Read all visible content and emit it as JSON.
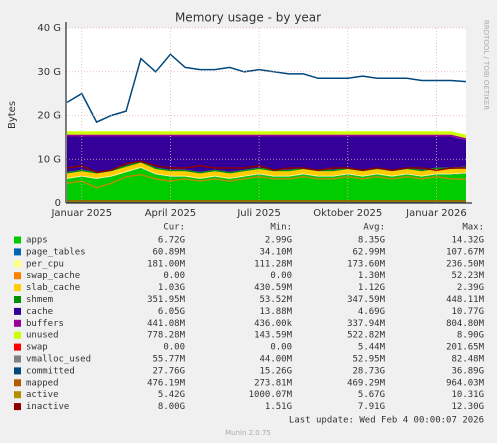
{
  "chart_data": {
    "type": "stacked_area",
    "title": "Memory usage - by year",
    "y_label": "Bytes",
    "side_text": "RRDTOOL / TOBI OETIKER",
    "legend_headers": [
      "Cur:",
      "Min:",
      "Avg:",
      "Max:"
    ],
    "last_update": "Last update: Wed Feb  4 00:00:07 2026",
    "footer": "Munin 2.0.75",
    "grid": true,
    "ylim": [
      0,
      40000000000
    ],
    "yticks": [
      0,
      {
        "value": 10000000000,
        "label": "10 G"
      },
      {
        "value": 20000000000,
        "label": "20 G"
      },
      {
        "value": 30000000000,
        "label": "30 G"
      },
      {
        "value": 40000000000,
        "label": "40 G"
      }
    ],
    "categories": [
      null,
      "Januar 2025",
      null,
      null,
      null,
      null,
      null,
      "April 2025",
      null,
      null,
      null,
      null,
      null,
      "Juli 2025",
      null,
      null,
      null,
      null,
      null,
      "Oktober 2025",
      null,
      null,
      null,
      null,
      null,
      "Januar 2026",
      null,
      null
    ],
    "series": [
      {
        "name": "apps",
        "color": "#00cc00",
        "stack": true,
        "cur": "6.72G",
        "min": "2.99G",
        "avg": "8.35G",
        "max": "14.32G",
        "values": [
          5500000000.0,
          6000000000.0,
          5500000000.0,
          6000000000.0,
          7000000000.0,
          8000000000.0,
          6500000000.0,
          6000000000.0,
          6000000000.0,
          5500000000.0,
          6000000000.0,
          5500000000.0,
          6000000000.0,
          6500000000.0,
          6000000000.0,
          6000000000.0,
          6500000000.0,
          6000000000.0,
          6000000000.0,
          6500000000.0,
          6000000000.0,
          6500000000.0,
          6000000000.0,
          6500000000.0,
          6000000000.0,
          6500000000.0,
          6500000000.0,
          6720000000.0
        ]
      },
      {
        "name": "page_tables",
        "color": "#0066b3",
        "stack": true,
        "cur": "60.89M",
        "min": "34.10M",
        "avg": "62.99M",
        "max": "107.67M",
        "values": [
          60000000.0,
          60000000.0,
          60000000.0,
          60000000.0,
          60000000.0,
          60000000.0,
          60000000.0,
          60000000.0,
          60000000.0,
          60000000.0,
          60000000.0,
          60000000.0,
          60000000.0,
          60000000.0,
          60000000.0,
          60000000.0,
          60000000.0,
          60000000.0,
          60000000.0,
          60000000.0,
          60000000.0,
          60000000.0,
          60000000.0,
          60000000.0,
          60000000.0,
          60000000.0,
          60000000.0,
          60000000.0
        ]
      },
      {
        "name": "per_cpu",
        "color": "#ffff80",
        "stack": true,
        "cur": "181.00M",
        "min": "111.28M",
        "avg": "173.60M",
        "max": "236.50M",
        "values": [
          180000000.0,
          180000000.0,
          180000000.0,
          180000000.0,
          180000000.0,
          180000000.0,
          180000000.0,
          180000000.0,
          180000000.0,
          180000000.0,
          180000000.0,
          180000000.0,
          180000000.0,
          180000000.0,
          180000000.0,
          180000000.0,
          180000000.0,
          180000000.0,
          180000000.0,
          180000000.0,
          180000000.0,
          180000000.0,
          180000000.0,
          180000000.0,
          180000000.0,
          180000000.0,
          180000000.0,
          180000000.0
        ]
      },
      {
        "name": "swap_cache",
        "color": "#ff8000",
        "stack": true,
        "cur": "0.00",
        "min": "0.00",
        "avg": "1.30M",
        "max": "52.23M",
        "values": [
          0,
          0,
          0,
          0,
          0,
          0,
          0,
          0,
          0,
          0,
          0,
          0,
          0,
          0,
          0,
          0,
          0,
          0,
          0,
          0,
          0,
          0,
          0,
          0,
          0,
          0,
          0,
          0
        ]
      },
      {
        "name": "slab_cache",
        "color": "#ffcc00",
        "stack": true,
        "cur": "1.03G",
        "min": "430.59M",
        "avg": "1.12G",
        "max": "2.39G",
        "values": [
          1000000000.0,
          1000000000.0,
          1000000000.0,
          1000000000.0,
          1000000000.0,
          1000000000.0,
          1000000000.0,
          1000000000.0,
          1000000000.0,
          1000000000.0,
          1000000000.0,
          1000000000.0,
          1000000000.0,
          1000000000.0,
          1000000000.0,
          1000000000.0,
          1000000000.0,
          1000000000.0,
          1000000000.0,
          1000000000.0,
          1000000000.0,
          1000000000.0,
          1000000000.0,
          1000000000.0,
          1000000000.0,
          1000000000.0,
          1000000000.0,
          1030000000.0
        ]
      },
      {
        "name": "shmem",
        "color": "#008f00",
        "stack": true,
        "cur": "351.95M",
        "min": "53.52M",
        "avg": "347.59M",
        "max": "448.11M",
        "values": [
          350000000.0,
          350000000.0,
          350000000.0,
          350000000.0,
          350000000.0,
          350000000.0,
          350000000.0,
          350000000.0,
          350000000.0,
          350000000.0,
          350000000.0,
          350000000.0,
          350000000.0,
          350000000.0,
          350000000.0,
          350000000.0,
          350000000.0,
          350000000.0,
          350000000.0,
          350000000.0,
          350000000.0,
          350000000.0,
          350000000.0,
          350000000.0,
          350000000.0,
          350000000.0,
          350000000.0,
          350000000.0
        ]
      },
      {
        "name": "cache",
        "color": "#330099",
        "stack": true,
        "cur": "6.05G",
        "min": "13.88M",
        "avg": "4.69G",
        "max": "10.77G",
        "values": [
          8100000000.0,
          7600000000.0,
          8100000000.0,
          7600000000.0,
          6600000000.0,
          5600000000.0,
          7100000000.0,
          7600000000.0,
          7600000000.0,
          8100000000.0,
          7600000000.0,
          8100000000.0,
          7600000000.0,
          7100000000.0,
          7600000000.0,
          7600000000.0,
          7100000000.0,
          7600000000.0,
          7600000000.0,
          7100000000.0,
          7600000000.0,
          7100000000.0,
          7600000000.0,
          7100000000.0,
          7600000000.0,
          7100000000.0,
          7100000000.0,
          6050000000.0
        ]
      },
      {
        "name": "buffers",
        "color": "#990099",
        "stack": true,
        "cur": "441.08M",
        "min": "436.00k",
        "avg": "337.94M",
        "max": "804.80M",
        "values": [
          440000000.0,
          440000000.0,
          440000000.0,
          440000000.0,
          440000000.0,
          440000000.0,
          440000000.0,
          440000000.0,
          440000000.0,
          440000000.0,
          440000000.0,
          440000000.0,
          440000000.0,
          440000000.0,
          440000000.0,
          440000000.0,
          440000000.0,
          440000000.0,
          440000000.0,
          440000000.0,
          440000000.0,
          440000000.0,
          440000000.0,
          440000000.0,
          440000000.0,
          440000000.0,
          440000000.0,
          441000000.0
        ]
      },
      {
        "name": "unused",
        "color": "#ccff00",
        "stack": true,
        "cur": "778.28M",
        "min": "143.59M",
        "avg": "522.82M",
        "max": "8.90G",
        "values": [
          780000000.0,
          780000000.0,
          780000000.0,
          780000000.0,
          780000000.0,
          780000000.0,
          780000000.0,
          780000000.0,
          780000000.0,
          780000000.0,
          780000000.0,
          780000000.0,
          780000000.0,
          780000000.0,
          780000000.0,
          780000000.0,
          780000000.0,
          780000000.0,
          780000000.0,
          780000000.0,
          780000000.0,
          780000000.0,
          780000000.0,
          780000000.0,
          780000000.0,
          780000000.0,
          780000000.0,
          780000000.0
        ]
      },
      {
        "name": "swap",
        "color": "#ff0000",
        "stack": true,
        "cur": "0.00",
        "min": "0.00",
        "avg": "5.44M",
        "max": "201.65M",
        "values": [
          0,
          0,
          0,
          0,
          0,
          0,
          0,
          0,
          0,
          0,
          0,
          0,
          0,
          0,
          0,
          0,
          0,
          0,
          0,
          0,
          0,
          0,
          0,
          0,
          0,
          0,
          0,
          0
        ]
      },
      {
        "name": "vmalloc_used",
        "color": "#808080",
        "stack": false,
        "cur": "55.77M",
        "min": "44.00M",
        "avg": "52.95M",
        "max": "82.48M",
        "values": [
          55000000.0,
          55000000.0,
          55000000.0,
          55000000.0,
          55000000.0,
          55000000.0,
          55000000.0,
          55000000.0,
          55000000.0,
          55000000.0,
          55000000.0,
          55000000.0,
          55000000.0,
          55000000.0,
          55000000.0,
          55000000.0,
          55000000.0,
          55000000.0,
          55000000.0,
          55000000.0,
          55000000.0,
          55000000.0,
          55000000.0,
          55000000.0,
          55000000.0,
          55000000.0,
          55000000.0,
          55000000.0
        ]
      },
      {
        "name": "committed",
        "color": "#00487d",
        "stack": false,
        "cur": "27.76G",
        "min": "15.26G",
        "avg": "28.73G",
        "max": "36.89G",
        "values": [
          23000000000.0,
          25000000000.0,
          18500000000.0,
          20000000000.0,
          21000000000.0,
          33000000000.0,
          30000000000.0,
          34000000000.0,
          31000000000.0,
          30500000000.0,
          30500000000.0,
          31000000000.0,
          30000000000.0,
          30500000000.0,
          30000000000.0,
          29500000000.0,
          29500000000.0,
          28500000000.0,
          28500000000.0,
          28500000000.0,
          29000000000.0,
          28500000000.0,
          28500000000.0,
          28500000000.0,
          28000000000.0,
          28000000000.0,
          28000000000.0,
          27760000000.0
        ]
      },
      {
        "name": "mapped",
        "color": "#b35a00",
        "stack": false,
        "cur": "476.19M",
        "min": "273.81M",
        "avg": "469.29M",
        "max": "964.03M",
        "values": [
          480000000.0,
          480000000.0,
          480000000.0,
          480000000.0,
          480000000.0,
          480000000.0,
          480000000.0,
          480000000.0,
          480000000.0,
          480000000.0,
          480000000.0,
          480000000.0,
          480000000.0,
          480000000.0,
          480000000.0,
          480000000.0,
          480000000.0,
          480000000.0,
          480000000.0,
          480000000.0,
          480000000.0,
          480000000.0,
          480000000.0,
          480000000.0,
          480000000.0,
          480000000.0,
          480000000.0,
          476000000.0
        ]
      },
      {
        "name": "active",
        "color": "#b38f00",
        "stack": false,
        "cur": "5.42G",
        "min": "1000.07M",
        "avg": "5.67G",
        "max": "10.31G",
        "values": [
          4500000000.0,
          5000000000.0,
          3500000000.0,
          4500000000.0,
          6000000000.0,
          6500000000.0,
          5500000000.0,
          5000000000.0,
          5500000000.0,
          5000000000.0,
          5500000000.0,
          5000000000.0,
          5500000000.0,
          6000000000.0,
          5500000000.0,
          5500000000.0,
          6000000000.0,
          5500000000.0,
          5500000000.0,
          6000000000.0,
          5500000000.0,
          6000000000.0,
          5500000000.0,
          6000000000.0,
          5500000000.0,
          6000000000.0,
          5500000000.0,
          5420000000.0
        ]
      },
      {
        "name": "inactive",
        "color": "#8f0000",
        "stack": false,
        "cur": "8.00G",
        "min": "1.51G",
        "avg": "7.91G",
        "max": "12.30G",
        "values": [
          8000000000.0,
          8500000000.0,
          7000000000.0,
          7500000000.0,
          9000000000.0,
          9500000000.0,
          8500000000.0,
          8000000000.0,
          8000000000.0,
          8500000000.0,
          8000000000.0,
          8000000000.0,
          8000000000.0,
          8500000000.0,
          7500000000.0,
          8000000000.0,
          8000000000.0,
          7500000000.0,
          8000000000.0,
          8000000000.0,
          7500000000.0,
          8000000000.0,
          7500000000.0,
          8000000000.0,
          8000000000.0,
          7500000000.0,
          8000000000.0,
          8000000000.0
        ]
      }
    ]
  }
}
